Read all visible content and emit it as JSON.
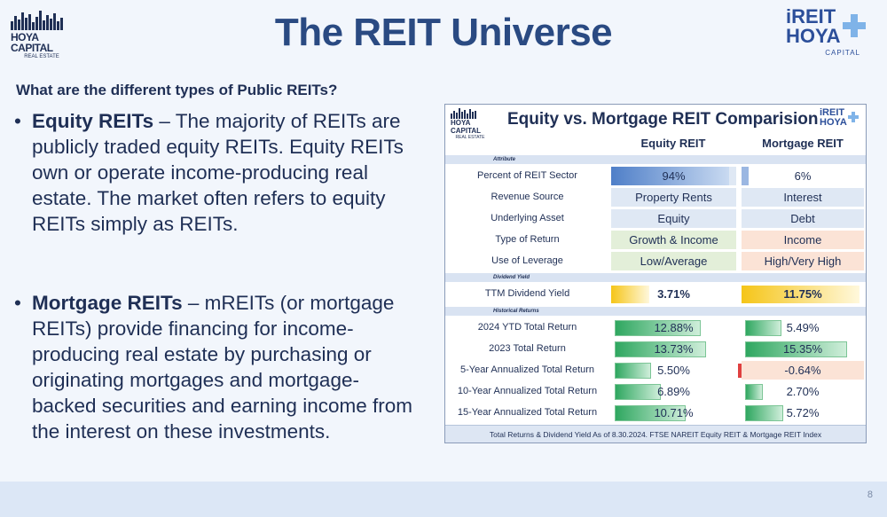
{
  "header": {
    "title": "The REIT Universe",
    "logo_left_name": "HOYA CAPITAL",
    "logo_left_sub": "REAL ESTATE",
    "logo_right_line1": "iREIT",
    "logo_right_line2": "HOYA",
    "logo_right_sub": "CAPITAL"
  },
  "subtitle": "What are the different types of Public REITs?",
  "bullets": [
    {
      "term": "Equity REITs",
      "text": " – The majority of REITs are publicly traded equity REITs. Equity REITs own or operate income-producing real estate. The market often refers to equity REITs simply as REITs."
    },
    {
      "term": "Mortgage REITs",
      "text": " – mREITs (or mortgage REITs) provide financing for income-producing real estate by purchasing or originating mortgages and mortgage-backed securities and earning income from the interest on these investments."
    }
  ],
  "table": {
    "title": "Equity vs. Mortgage REIT Comparision",
    "logo_left_name": "HOYA CAPITAL",
    "logo_left_sub": "REAL ESTATE",
    "logo_right_line1": "iREIT",
    "logo_right_line2": "HOYA",
    "col_a": "Equity REIT",
    "col_b": "Mortgage REIT",
    "section_attribute": "Attribute",
    "section_yield": "Dividend Yield",
    "section_returns": "Historical Returns",
    "attributes": [
      {
        "label": "Percent of REIT Sector",
        "a": "94%",
        "b": "6%",
        "a_share": 0.94,
        "b_share": 0.06
      },
      {
        "label": "Revenue Source",
        "a": "Property Rents",
        "b": "Interest"
      },
      {
        "label": "Underlying Asset",
        "a": "Equity",
        "b": "Debt"
      },
      {
        "label": "Type of Return",
        "a": "Growth & Income",
        "b": "Income"
      },
      {
        "label": "Use of Leverage",
        "a": "Low/Average",
        "b": "High/Very High"
      }
    ],
    "yield": {
      "label": "TTM Dividend Yield",
      "a": "3.71%",
      "b": "11.75%",
      "a_value": 3.71,
      "b_value": 11.75
    },
    "returns": [
      {
        "label": "2024 YTD Total Return",
        "a": "12.88%",
        "b": "5.49%",
        "a_value": 12.88,
        "b_value": 5.49
      },
      {
        "label": "2023 Total Return",
        "a": "13.73%",
        "b": "15.35%",
        "a_value": 13.73,
        "b_value": 15.35
      },
      {
        "label": "5-Year Annualized Total Return",
        "a": "5.50%",
        "b": "-0.64%",
        "a_value": 5.5,
        "b_value": -0.64
      },
      {
        "label": "10-Year Annualized Total Return",
        "a": "6.89%",
        "b": "2.70%",
        "a_value": 6.89,
        "b_value": 2.7
      },
      {
        "label": "15-Year Annualized Total Return",
        "a": "10.71%",
        "b": "5.72%",
        "a_value": 10.71,
        "b_value": 5.72
      }
    ],
    "footer": "Total Returns & Dividend Yield As of 8.30.2024. FTSE NAREIT Equity REIT & Mortgage REIT Index"
  },
  "colors": {
    "title": "#2a4a82",
    "navy": "#1f2f55",
    "blue_cell": "#dfe8f4",
    "green_cell": "#e3efd9",
    "orange_cell": "#fbe3d6",
    "bar_green": "#2fa760",
    "yield_gold": "#f5c518"
  },
  "page_number": "8"
}
